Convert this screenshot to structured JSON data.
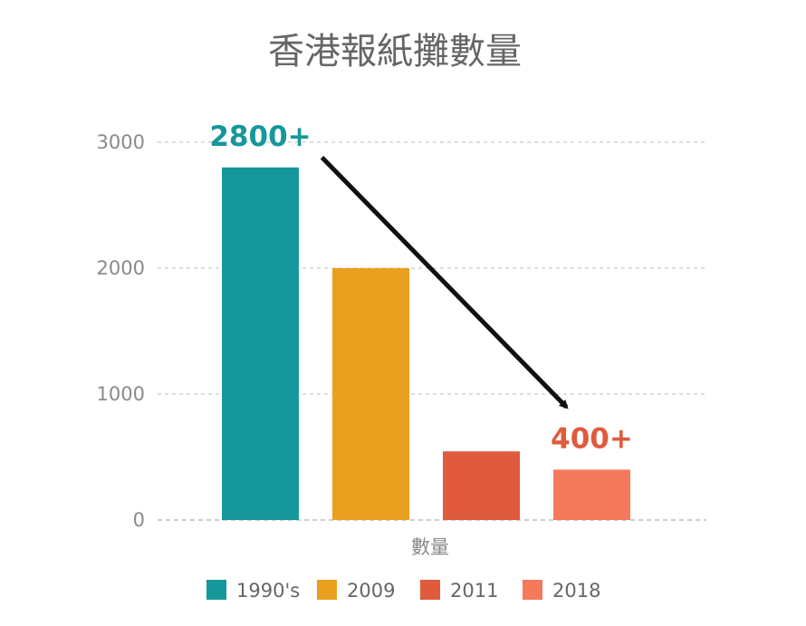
{
  "chart_data": {
    "type": "bar",
    "title": "香港報紙攤數量",
    "xlabel": "數量",
    "ylabel": "",
    "ylim": [
      0,
      3000
    ],
    "yticks": [
      0,
      1000,
      2000,
      3000
    ],
    "grid": true,
    "legend_position": "bottom",
    "series": [
      {
        "name": "1990's",
        "value": 2800,
        "color": "#16979a"
      },
      {
        "name": "2009",
        "value": 2000,
        "color": "#eb9f1f"
      },
      {
        "name": "2011",
        "value": 545,
        "color": "#e05a3e"
      },
      {
        "name": "2018",
        "value": 400,
        "color": "#f47a5b"
      }
    ],
    "annotations": [
      {
        "text": "2800+",
        "series": "1990's",
        "color": "#16979a"
      },
      {
        "text": "400+",
        "series": "2018",
        "color": "#e05a3e"
      }
    ],
    "arrow": {
      "from_series": "1990's",
      "to_series": "2018",
      "color": "#111111"
    }
  }
}
